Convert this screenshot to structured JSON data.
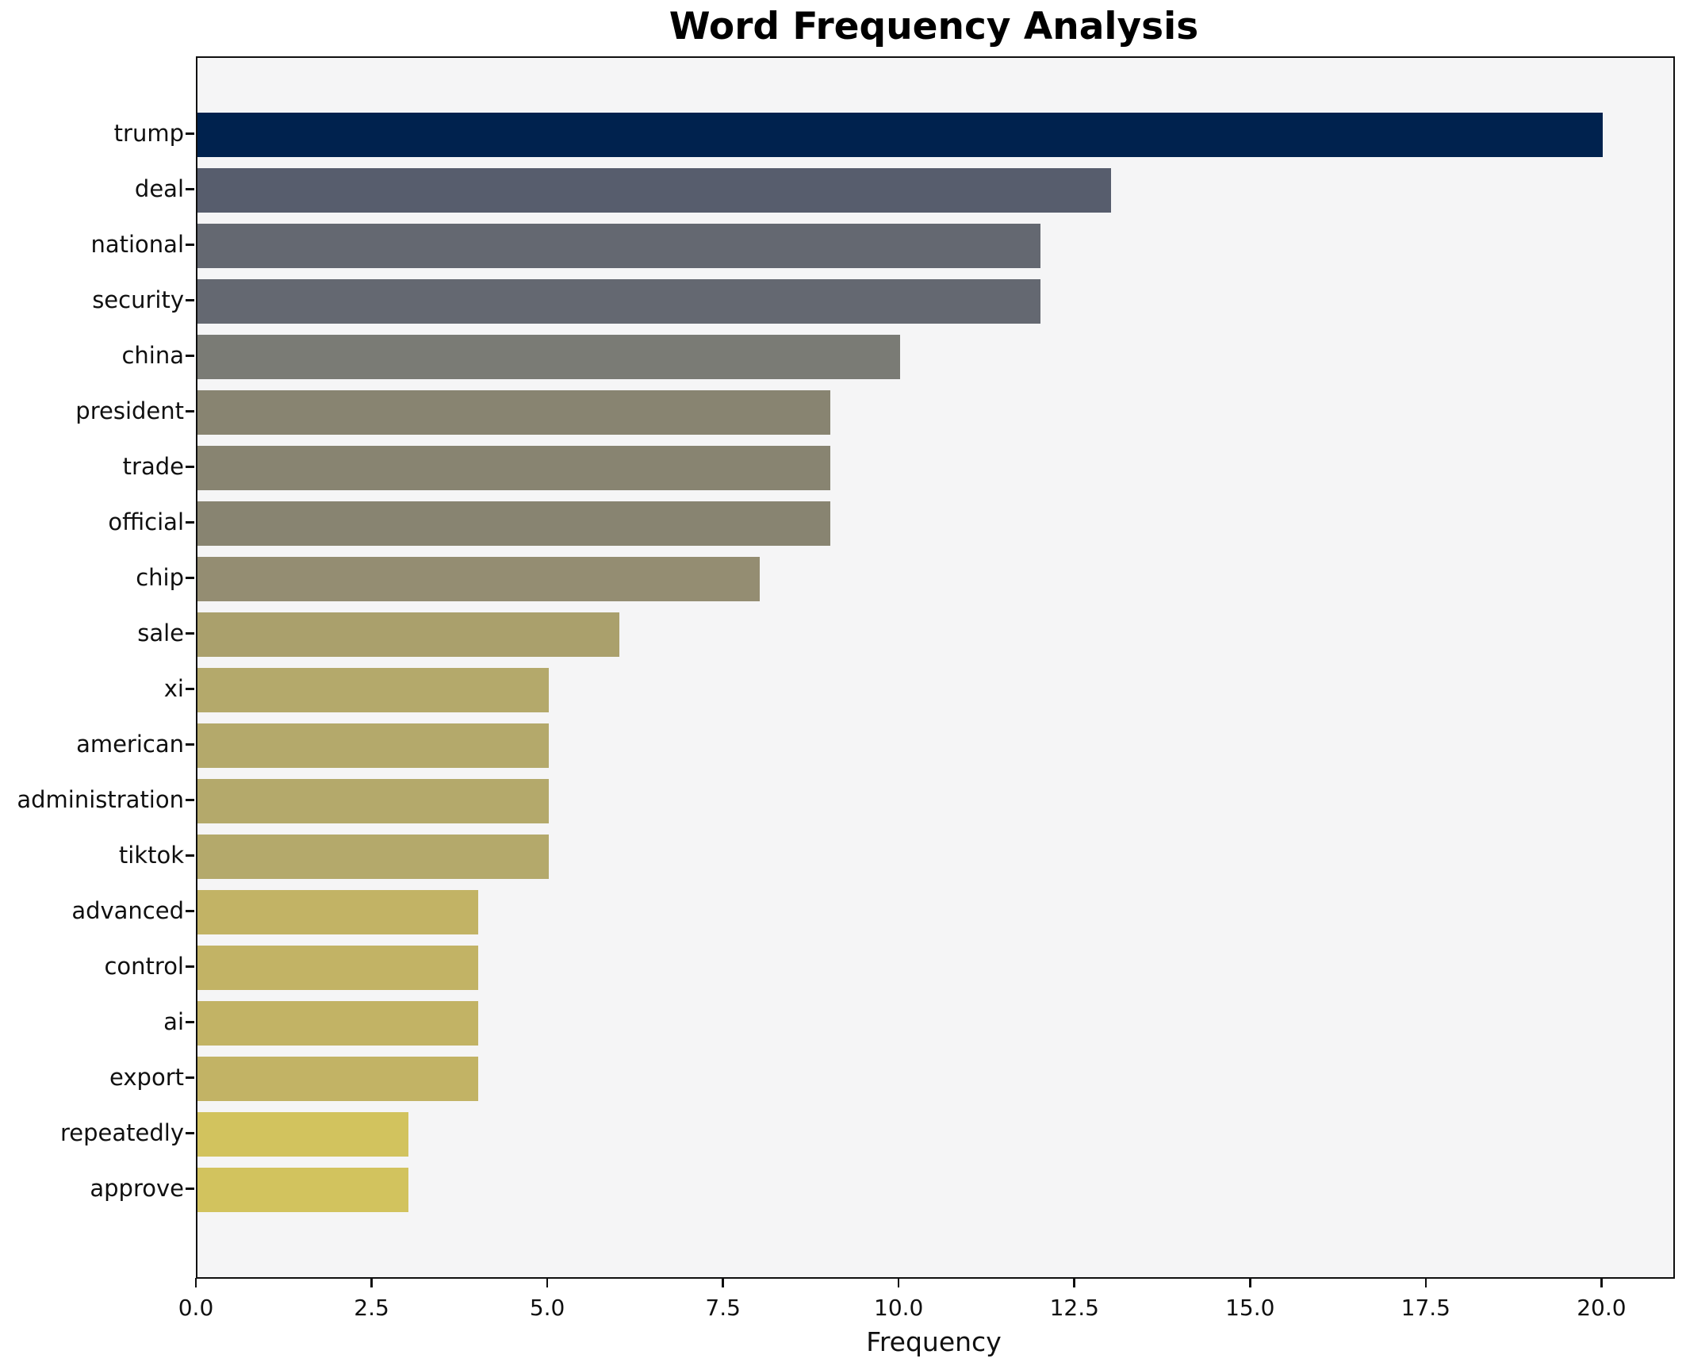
{
  "chart_data": {
    "type": "bar",
    "orientation": "horizontal",
    "title": "Word Frequency Analysis",
    "xlabel": "Frequency",
    "ylabel": "",
    "categories": [
      "trump",
      "deal",
      "national",
      "security",
      "china",
      "president",
      "trade",
      "official",
      "chip",
      "sale",
      "xi",
      "american",
      "administration",
      "tiktok",
      "advanced",
      "control",
      "ai",
      "export",
      "repeatedly",
      "approve"
    ],
    "values": [
      20,
      13,
      12,
      12,
      10,
      9,
      9,
      9,
      8,
      6,
      5,
      5,
      5,
      5,
      4,
      4,
      4,
      4,
      3,
      3
    ],
    "bar_colors": [
      "#00224e",
      "#575d6d",
      "#646871",
      "#646871",
      "#7a7b75",
      "#888471",
      "#888471",
      "#888471",
      "#948d72",
      "#aaa06c",
      "#b4a96b",
      "#b4a96b",
      "#b4a96b",
      "#b4a96b",
      "#c2b365",
      "#c2b365",
      "#c2b365",
      "#c2b365",
      "#d2c35e",
      "#d2c35e"
    ],
    "xlim": [
      0,
      21
    ],
    "xticks": [
      0.0,
      2.5,
      5.0,
      7.5,
      10.0,
      12.5,
      15.0,
      17.5,
      20.0
    ],
    "xtick_labels": [
      "0.0",
      "2.5",
      "5.0",
      "7.5",
      "10.0",
      "12.5",
      "15.0",
      "17.5",
      "20.0"
    ],
    "grid": false,
    "legend": "none",
    "plot_background": "#f5f5f6",
    "figure_background": "#ffffff",
    "spine_color": "#0f0f0f"
  }
}
